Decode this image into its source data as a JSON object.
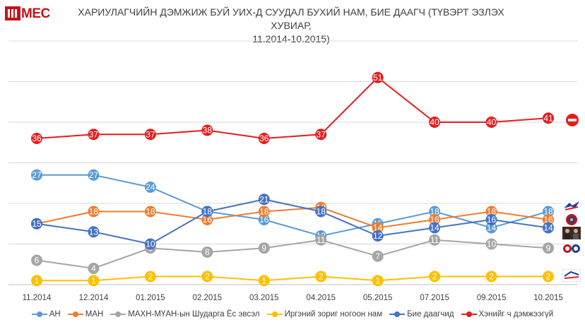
{
  "header": {
    "logo_text": "MEC",
    "title_line1": "ХАРИУЛАГЧИЙН ДЭМЖИЖ БУЙ УИХ-Д СУУДАЛ БУХИЙ НАМ, БИЕ ДААГЧ (ТҮВЭРТ ЭЗЛЭХ ХУВИАР,",
    "title_line2": "11.2014-10.2015)"
  },
  "chart_data": {
    "type": "line",
    "title": "ХАРИУЛАГЧИЙН ДЭМЖИЖ БУЙ УИХ-Д СУУДАЛ БУХИЙ НАМ, БИЕ ДААГЧ (ТҮВЭРТ ЭЗЛЭХ ХУВИАР, 11.2014-10.2015)",
    "categories": [
      "11.2014",
      "12.2014",
      "01.2015",
      "02.2015",
      "03.2015",
      "04.2015",
      "05.2015",
      "07.2015",
      "09.2015",
      "10.2015"
    ],
    "ylim": [
      0,
      60
    ],
    "grid": true,
    "legend_position": "bottom",
    "series": [
      {
        "name": "АН",
        "color": "#5b9bd5",
        "values": [
          27,
          27,
          24,
          18,
          16,
          12,
          15,
          18,
          14,
          18
        ]
      },
      {
        "name": "МАН",
        "color": "#ed7d31",
        "values": [
          15,
          18,
          18,
          16,
          18,
          19,
          14,
          16,
          18,
          16
        ]
      },
      {
        "name": "МАХН-МҮАН-ын Шударга Ёс эвсэл",
        "color": "#a5a5a5",
        "values": [
          6,
          4,
          9,
          8,
          9,
          11,
          7,
          11,
          10,
          9
        ]
      },
      {
        "name": "Иргэний зориг ногоон нам",
        "color": "#ffc000",
        "values": [
          1,
          1,
          2,
          2,
          1,
          2,
          1,
          2,
          2,
          2
        ]
      },
      {
        "name": "Бие даагчид",
        "color": "#4472c4",
        "values": [
          15,
          13,
          10,
          18,
          21,
          18,
          12,
          14,
          16,
          14
        ]
      },
      {
        "name": "Хэнийг ч дэмжээгүй",
        "color": "#e41e1e",
        "values": [
          36,
          37,
          37,
          38,
          36,
          37,
          51,
          40,
          40,
          41
        ]
      }
    ]
  },
  "side_icons": [
    "no-entry-icon",
    "democratic-party-logo-icon",
    "mpp-logo-icon",
    "independents-photo-icon",
    "justice-coalition-logo-icon",
    "green-party-logo-icon"
  ]
}
